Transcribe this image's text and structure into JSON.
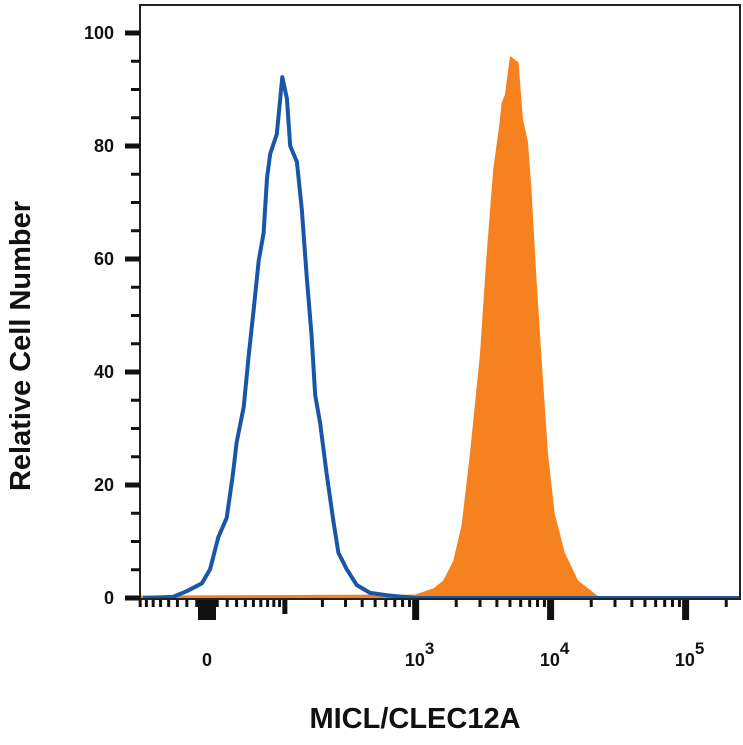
{
  "chart_data": {
    "type": "area",
    "title": "",
    "xlabel": "MICL/CLEC12A",
    "ylabel": "Relative Cell Number",
    "x_scale": "biexponential",
    "xlim": [
      -80,
      250000
    ],
    "ylim": [
      0,
      100
    ],
    "grid": false,
    "legend": "none",
    "y_ticks": [
      0,
      20,
      40,
      60,
      80,
      100
    ],
    "y_tick_labels": [
      "0",
      "20",
      "40",
      "60",
      "80",
      "100"
    ],
    "x_ticks": [
      0,
      1000,
      10000,
      100000
    ],
    "x_tick_labels": [
      {
        "base": "0",
        "exp": ""
      },
      {
        "base": "10",
        "exp": "3"
      },
      {
        "base": "10",
        "exp": "4"
      },
      {
        "base": "10",
        "exp": "5"
      }
    ],
    "series": [
      {
        "style": "filled",
        "color": "#f5821f",
        "x": [
          -80,
          1000,
          1366,
          1620,
          1921,
          2216,
          2557,
          3028,
          3392,
          3799,
          4214,
          4389,
          4642,
          5051,
          5720,
          6158,
          6710,
          7100,
          7743,
          8433,
          9453,
          10600,
          12560,
          15830,
          22330,
          250000
        ],
        "y": [
          0.3,
          0.5,
          1.6,
          3.0,
          6.5,
          12.8,
          25.4,
          42.9,
          60.4,
          75.8,
          83.5,
          87.6,
          89.0,
          95.7,
          94.7,
          84.8,
          80.7,
          73.0,
          56.9,
          42.9,
          25.4,
          14.9,
          8.0,
          3.0,
          0.2,
          0.2
        ]
      },
      {
        "style": "line",
        "color": "#1a56a8",
        "x": [
          -75,
          -35,
          -20,
          -5,
          3,
          11,
          19.5,
          26,
          30,
          38,
          44,
          50,
          57,
          64,
          69,
          74,
          85,
          95,
          104,
          111,
          126,
          138,
          151,
          165,
          176,
          192,
          216,
          243,
          265,
          306,
          364,
          458,
          610,
          811,
          1019,
          1800,
          250000
        ],
        "y": [
          0,
          0.2,
          1.2,
          2.6,
          5.1,
          10.7,
          14.2,
          21.9,
          27.5,
          33.8,
          42.9,
          50.6,
          59.7,
          64.6,
          74.3,
          78.6,
          82.1,
          92.2,
          88.4,
          80.0,
          77.2,
          68.8,
          56.9,
          46.4,
          35.9,
          31.0,
          21.9,
          13.6,
          8.0,
          5.1,
          2.3,
          0.9,
          0.5,
          0.2,
          0.0,
          0.0,
          0.0
        ]
      }
    ]
  }
}
